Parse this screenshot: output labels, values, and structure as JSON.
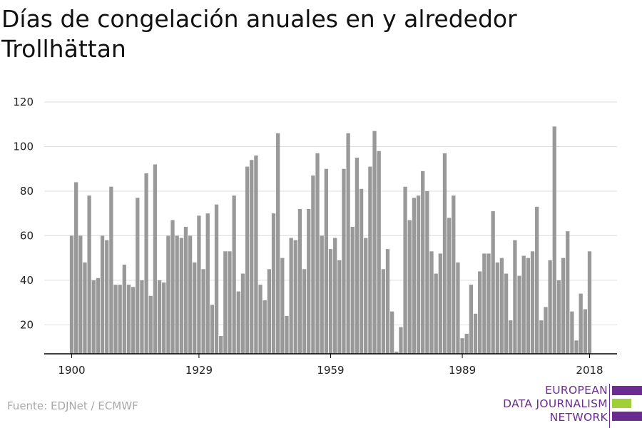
{
  "title": "Días de congelación anuales en y alrededor Trollhättan",
  "source": "Fuente: EDJNet / ECMWF",
  "logo": {
    "line1": "EUROPEAN",
    "line2": "DATA JOURNALISM",
    "line3": "NETWORK",
    "colors": {
      "purple": "#6b2c91",
      "green": "#9fd038"
    }
  },
  "colors": {
    "bar": "#999999",
    "grid": "#dddddd",
    "axis": "#000000"
  },
  "chart_data": {
    "type": "bar",
    "title": "Días de congelación anuales en y alrededor Trollhättan",
    "xlabel": "",
    "ylabel": "",
    "x_tick_labels": [
      "1900",
      "1929",
      "1959",
      "1989",
      "2018"
    ],
    "y_ticks": [
      20,
      40,
      60,
      80,
      100,
      120
    ],
    "ylim": [
      7,
      120
    ],
    "grid": true,
    "legend": "none",
    "x": [
      1900,
      1901,
      1902,
      1903,
      1904,
      1905,
      1906,
      1907,
      1908,
      1909,
      1910,
      1911,
      1912,
      1913,
      1914,
      1915,
      1916,
      1917,
      1918,
      1919,
      1920,
      1921,
      1922,
      1923,
      1924,
      1925,
      1926,
      1927,
      1928,
      1929,
      1930,
      1931,
      1932,
      1933,
      1934,
      1935,
      1936,
      1937,
      1938,
      1939,
      1940,
      1941,
      1942,
      1943,
      1944,
      1945,
      1946,
      1947,
      1948,
      1949,
      1950,
      1951,
      1952,
      1953,
      1954,
      1955,
      1956,
      1957,
      1958,
      1959,
      1960,
      1961,
      1962,
      1963,
      1964,
      1965,
      1966,
      1967,
      1968,
      1969,
      1970,
      1971,
      1972,
      1973,
      1974,
      1975,
      1976,
      1977,
      1978,
      1979,
      1980,
      1981,
      1982,
      1983,
      1984,
      1985,
      1986,
      1987,
      1988,
      1989,
      1990,
      1991,
      1992,
      1993,
      1994,
      1995,
      1996,
      1997,
      1998,
      1999,
      2000,
      2001,
      2002,
      2003,
      2004,
      2005,
      2006,
      2007,
      2008,
      2009,
      2010,
      2011,
      2012,
      2013,
      2014,
      2015,
      2016,
      2017,
      2018
    ],
    "values": [
      60,
      84,
      60,
      48,
      78,
      40,
      41,
      60,
      58,
      82,
      38,
      38,
      47,
      38,
      37,
      77,
      40,
      88,
      33,
      92,
      40,
      39,
      60,
      67,
      60,
      59,
      64,
      60,
      48,
      69,
      45,
      70,
      29,
      74,
      15,
      53,
      53,
      78,
      35,
      43,
      91,
      94,
      96,
      38,
      31,
      45,
      70,
      106,
      50,
      24,
      59,
      58,
      72,
      45,
      72,
      87,
      97,
      60,
      90,
      54,
      59,
      49,
      90,
      106,
      64,
      95,
      81,
      59,
      91,
      107,
      98,
      45,
      54,
      26,
      8,
      19,
      82,
      67,
      77,
      78,
      89,
      80,
      53,
      43,
      52,
      97,
      68,
      78,
      48,
      14,
      16,
      38,
      25,
      44,
      52,
      52,
      71,
      48,
      50,
      43,
      22,
      58,
      42,
      51,
      50,
      53,
      73,
      22,
      28,
      49,
      109,
      40,
      50,
      62,
      26,
      13,
      34,
      27,
      53
    ]
  }
}
